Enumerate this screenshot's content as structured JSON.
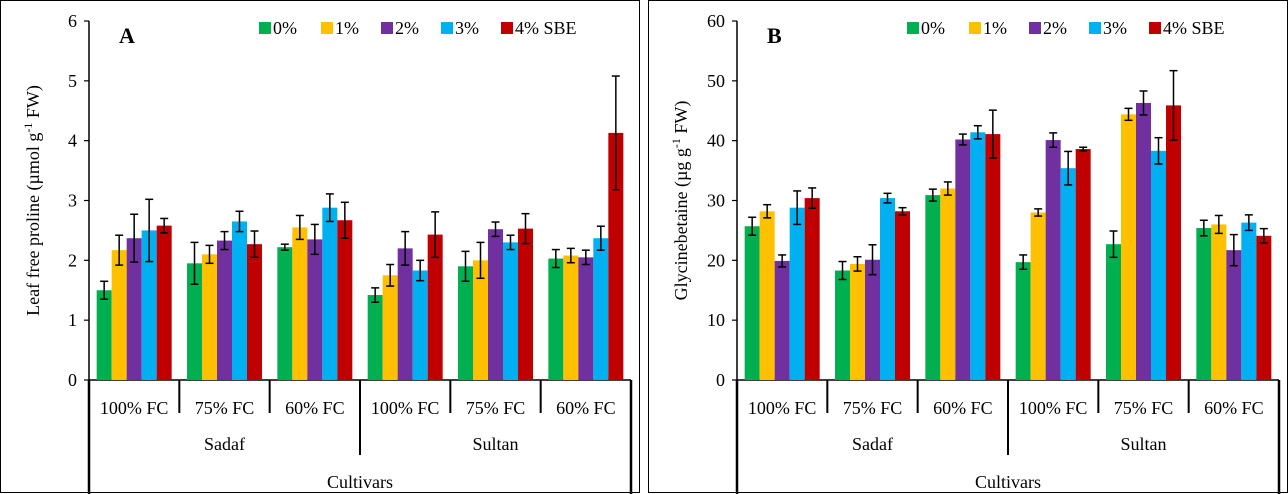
{
  "colors": {
    "0%": "#00b050",
    "1%": "#ffc000",
    "2%": "#7030a0",
    "3%": "#00b0f0",
    "4% SBE": "#c00000"
  },
  "chart_data": [
    {
      "type": "bar",
      "panel_label": "A",
      "ylabel": "Leaf free proline (µmol g⁻¹ FW)",
      "ylabel_main": "Leaf free proline (µmol g",
      "ylabel_sup": "-1",
      "ylabel_tail": " FW)",
      "xlabel": "Cultivars",
      "ylim": [
        0,
        6
      ],
      "yticks": [
        0,
        1,
        2,
        3,
        4,
        5,
        6
      ],
      "groups": [
        "Sadaf",
        "Sultan"
      ],
      "categories": [
        "100% FC",
        "75% FC",
        "60% FC",
        "100% FC",
        "75% FC",
        "60% FC"
      ],
      "legend": [
        "0%",
        "1%",
        "2%",
        "3%",
        "4% SBE"
      ],
      "legend_position": "top-right",
      "grid": false,
      "series": [
        {
          "name": "0%",
          "values": [
            1.5,
            1.95,
            2.22,
            1.42,
            1.9,
            2.03
          ],
          "errors": [
            0.15,
            0.35,
            0.05,
            0.12,
            0.25,
            0.15
          ]
        },
        {
          "name": "1%",
          "values": [
            2.17,
            2.1,
            2.55,
            1.75,
            2.0,
            2.08
          ],
          "errors": [
            0.25,
            0.15,
            0.2,
            0.18,
            0.3,
            0.12
          ]
        },
        {
          "name": "2%",
          "values": [
            2.37,
            2.33,
            2.35,
            2.2,
            2.52,
            2.05
          ],
          "errors": [
            0.4,
            0.15,
            0.25,
            0.28,
            0.12,
            0.12
          ]
        },
        {
          "name": "3%",
          "values": [
            2.5,
            2.65,
            2.88,
            1.83,
            2.3,
            2.37
          ],
          "errors": [
            0.52,
            0.17,
            0.23,
            0.17,
            0.12,
            0.2
          ]
        },
        {
          "name": "4% SBE",
          "values": [
            2.58,
            2.27,
            2.67,
            2.43,
            2.53,
            4.13
          ],
          "errors": [
            0.12,
            0.22,
            0.3,
            0.38,
            0.25,
            0.95
          ]
        }
      ]
    },
    {
      "type": "bar",
      "panel_label": "B",
      "ylabel": "Glycinebetaine (µg g⁻¹ FW)",
      "ylabel_main": "Glycinebetaine (µg g",
      "ylabel_sup": "-1",
      "ylabel_tail": " FW)",
      "xlabel": "Cultivars",
      "ylim": [
        0,
        60
      ],
      "yticks": [
        0,
        10,
        20,
        30,
        40,
        50,
        60
      ],
      "groups": [
        "Sadaf",
        "Sultan"
      ],
      "categories": [
        "100% FC",
        "75% FC",
        "60% FC",
        "100% FC",
        "75% FC",
        "60% FC"
      ],
      "legend": [
        "0%",
        "1%",
        "2%",
        "3%",
        "4% SBE"
      ],
      "legend_position": "top-right",
      "grid": false,
      "series": [
        {
          "name": "0%",
          "values": [
            25.7,
            18.3,
            30.9,
            19.7,
            22.7,
            25.4
          ],
          "errors": [
            1.5,
            1.5,
            1.0,
            1.2,
            2.2,
            1.3
          ]
        },
        {
          "name": "1%",
          "values": [
            28.2,
            19.4,
            32.0,
            28.0,
            44.4,
            26.0
          ],
          "errors": [
            1.1,
            1.2,
            1.1,
            0.6,
            1.0,
            1.5
          ]
        },
        {
          "name": "2%",
          "values": [
            19.9,
            20.1,
            40.2,
            40.1,
            46.3,
            21.7
          ],
          "errors": [
            1.0,
            2.5,
            0.9,
            1.2,
            2.0,
            2.6
          ]
        },
        {
          "name": "3%",
          "values": [
            28.8,
            30.4,
            41.4,
            35.4,
            38.3,
            26.3
          ],
          "errors": [
            2.8,
            0.8,
            1.1,
            2.8,
            2.2,
            1.3
          ]
        },
        {
          "name": "4% SBE",
          "values": [
            30.4,
            28.2,
            41.1,
            38.6,
            45.9,
            24.1
          ],
          "errors": [
            1.7,
            0.6,
            4.0,
            0.3,
            5.8,
            1.2
          ]
        }
      ]
    }
  ]
}
